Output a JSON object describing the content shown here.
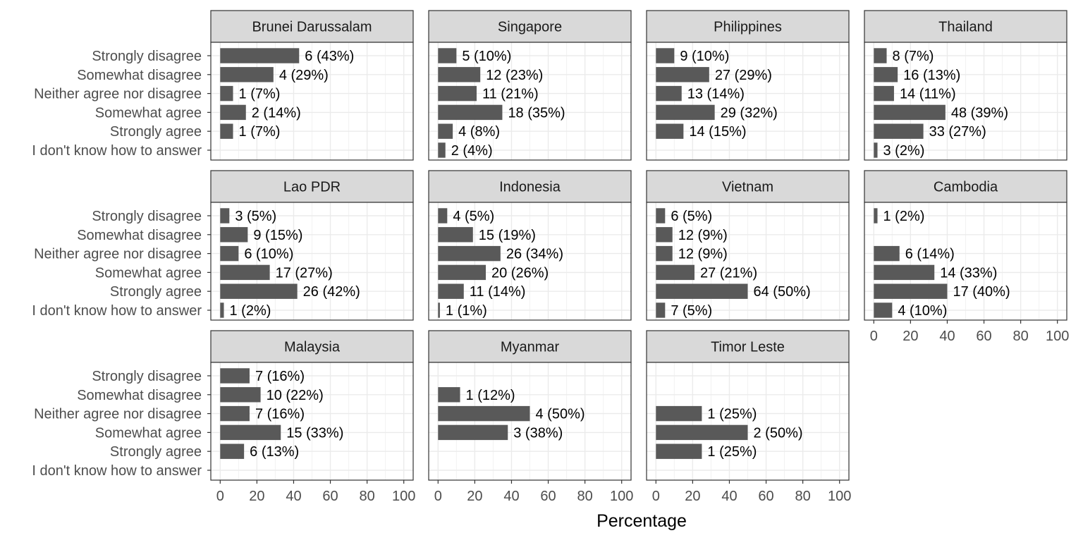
{
  "chart_data": {
    "type": "bar",
    "orientation": "horizontal",
    "xlabel": "Percentage",
    "xlim": [
      0,
      100
    ],
    "x_ticks": [
      0,
      20,
      40,
      60,
      80,
      100
    ],
    "grid": true,
    "bar_color": "#595959",
    "strip_color": "#d9d9d9",
    "categories": [
      "Strongly disagree",
      "Somewhat disagree",
      "Neither agree nor disagree",
      "Somewhat agree",
      "Strongly agree",
      "I don't know how to answer"
    ],
    "panels": [
      {
        "title": "Brunei Darussalam",
        "values": [
          43,
          29,
          7,
          14,
          7,
          null
        ],
        "labels": [
          "6 (43%)",
          "4 (29%)",
          "1 (7%)",
          "2 (14%)",
          "1 (7%)",
          ""
        ]
      },
      {
        "title": "Singapore",
        "values": [
          10,
          23,
          21,
          35,
          8,
          4
        ],
        "labels": [
          "5 (10%)",
          "12 (23%)",
          "11 (21%)",
          "18 (35%)",
          "4 (8%)",
          "2 (4%)"
        ]
      },
      {
        "title": "Philippines",
        "values": [
          10,
          29,
          14,
          32,
          15,
          null
        ],
        "labels": [
          "9 (10%)",
          "27 (29%)",
          "13 (14%)",
          "29 (32%)",
          "14 (15%)",
          ""
        ]
      },
      {
        "title": "Thailand",
        "values": [
          7,
          13,
          11,
          39,
          27,
          2
        ],
        "labels": [
          "8 (7%)",
          "16 (13%)",
          "14 (11%)",
          "48 (39%)",
          "33 (27%)",
          "3 (2%)"
        ]
      },
      {
        "title": "Lao PDR",
        "values": [
          5,
          15,
          10,
          27,
          42,
          2
        ],
        "labels": [
          "3 (5%)",
          "9 (15%)",
          "6 (10%)",
          "17 (27%)",
          "26 (42%)",
          "1 (2%)"
        ]
      },
      {
        "title": "Indonesia",
        "values": [
          5,
          19,
          34,
          26,
          14,
          1
        ],
        "labels": [
          "4 (5%)",
          "15 (19%)",
          "26 (34%)",
          "20 (26%)",
          "11 (14%)",
          "1 (1%)"
        ]
      },
      {
        "title": "Vietnam",
        "values": [
          5,
          9,
          9,
          21,
          50,
          5
        ],
        "labels": [
          "6 (5%)",
          "12 (9%)",
          "12 (9%)",
          "27 (21%)",
          "64 (50%)",
          "7 (5%)"
        ]
      },
      {
        "title": "Cambodia",
        "values": [
          2,
          null,
          14,
          33,
          40,
          10
        ],
        "labels": [
          "1 (2%)",
          "",
          "6 (14%)",
          "14 (33%)",
          "17 (40%)",
          "4 (10%)"
        ]
      },
      {
        "title": "Malaysia",
        "values": [
          16,
          22,
          16,
          33,
          13,
          null
        ],
        "labels": [
          "7 (16%)",
          "10 (22%)",
          "7 (16%)",
          "15 (33%)",
          "6 (13%)",
          ""
        ]
      },
      {
        "title": "Myanmar",
        "values": [
          null,
          12,
          50,
          38,
          null,
          null
        ],
        "labels": [
          "",
          "1 (12%)",
          "4 (50%)",
          "3 (38%)",
          "",
          ""
        ]
      },
      {
        "title": "Timor Leste",
        "values": [
          null,
          null,
          25,
          50,
          25,
          null
        ],
        "labels": [
          "",
          "",
          "1 (25%)",
          "2 (50%)",
          "1 (25%)",
          ""
        ]
      }
    ]
  }
}
